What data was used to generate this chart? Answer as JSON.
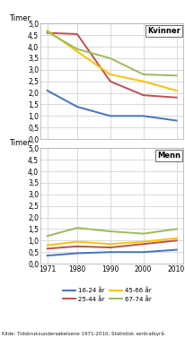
{
  "years": [
    1971,
    1980,
    1990,
    2000,
    2010
  ],
  "kvinner": {
    "16-24": [
      2.1,
      1.4,
      1.0,
      1.0,
      0.8
    ],
    "25-44": [
      4.6,
      4.55,
      2.5,
      1.9,
      1.8
    ],
    "45-66": [
      4.7,
      3.8,
      2.8,
      2.5,
      2.1
    ],
    "67-74": [
      4.65,
      3.9,
      3.5,
      2.8,
      2.75
    ]
  },
  "menn": {
    "16-24": [
      0.35,
      0.45,
      0.5,
      0.5,
      0.6
    ],
    "25-44": [
      0.65,
      0.75,
      0.7,
      0.85,
      1.0
    ],
    "45-66": [
      0.8,
      0.95,
      0.85,
      0.95,
      1.1
    ],
    "67-74": [
      1.2,
      1.55,
      1.4,
      1.3,
      1.5
    ]
  },
  "colors": {
    "16-24": "#4472C4",
    "25-44": "#C0504D",
    "45-66": "#FFC000",
    "67-74": "#9BBB59"
  },
  "legend_labels": {
    "16-24": "16-24 år",
    "25-44": "25-44 år",
    "45-66": "45-66 år",
    "67-74": "67-74 år"
  },
  "timer_label": "Timer",
  "ylim": [
    0.0,
    5.0
  ],
  "yticks": [
    0.0,
    0.5,
    1.0,
    1.5,
    2.0,
    2.5,
    3.0,
    3.5,
    4.0,
    4.5,
    5.0
  ],
  "ytick_labels": [
    "0,0",
    "0,5",
    "1,0",
    "1,5",
    "2,0",
    "2,5",
    "3,0",
    "3,5",
    "4,0",
    "4,5",
    "5,0"
  ],
  "xlabel_years": [
    1971,
    1980,
    1990,
    2000,
    2010
  ],
  "label_kvinner": "Kvinner",
  "label_menn": "Menn",
  "source": "Kilde: Tidsbruksundersøkelsene 1971-2010, Statistisk sentralbyrå.",
  "bg_color": "#ffffff",
  "grid_color": "#cccccc",
  "linewidth": 1.4
}
